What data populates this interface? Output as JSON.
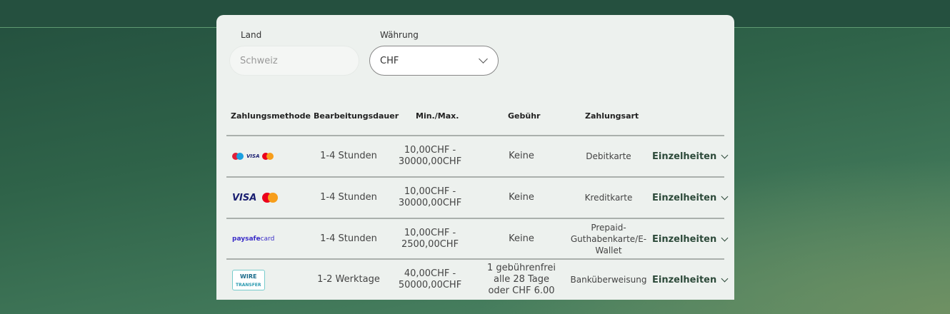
{
  "filters": {
    "country_label": "Land",
    "country_value": "Schweiz",
    "currency_label": "Währung",
    "currency_value": "CHF"
  },
  "table": {
    "headers": [
      "Zahlungsmethode",
      "Bearbeitungsdauer",
      "Min./Max.",
      "Gebühr",
      "Zahlungsart"
    ],
    "rows": [
      {
        "method": "maestro-visa-mastercard",
        "duration": "1-4 Stunden",
        "minmax": "10,00CHF - 30000,00CHF",
        "fee": "Keine",
        "type": "Debitkarte",
        "details": "Einzelheiten"
      },
      {
        "method": "visa-mastercard",
        "duration": "1-4 Stunden",
        "minmax": "10,00CHF - 30000,00CHF",
        "fee": "Keine",
        "type": "Kreditkarte",
        "details": "Einzelheiten"
      },
      {
        "method": "paysafecard",
        "duration": "1-4 Stunden",
        "minmax": "10,00CHF - 2500,00CHF",
        "fee": "Keine",
        "type": "Prepaid-Guthabenkarte/E-Wallet",
        "details": "Einzelheiten"
      },
      {
        "method": "wire-transfer",
        "duration": "1-2 Werktage",
        "minmax": "40,00CHF - 50000,00CHF",
        "fee": "1 gebührenfrei alle 28 Tage oder CHF 6.00",
        "type": "Banküberweisung",
        "details": "Einzelheiten"
      }
    ]
  },
  "logos": {
    "visa": "VISA",
    "paysafe_a": "paysafe",
    "paysafe_b": "card",
    "wire_a": "WIRE",
    "wire_b": "TRANSFER"
  }
}
